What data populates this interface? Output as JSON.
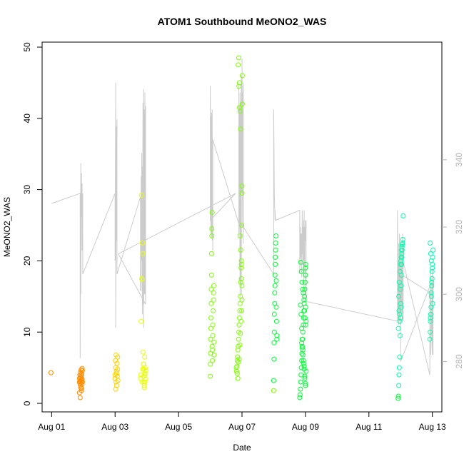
{
  "chart_data": {
    "type": "scatter",
    "title": "ATOM1 Southbound MeONO2_WAS",
    "xlabel": "Date",
    "ylabel": "MeONO2_WAS",
    "x_unit": "days since Aug 01",
    "xlim": [
      -0.3,
      12.3
    ],
    "ylim": [
      -1.2,
      50.7
    ],
    "y2lim": [
      265,
      375
    ],
    "x_ticks": [
      {
        "value": 0,
        "label": "Aug 01"
      },
      {
        "value": 2,
        "label": "Aug 03"
      },
      {
        "value": 4,
        "label": "Aug 05"
      },
      {
        "value": 6,
        "label": "Aug 07"
      },
      {
        "value": 8,
        "label": "Aug 09"
      },
      {
        "value": 10,
        "label": "Aug 11"
      },
      {
        "value": 12,
        "label": "Aug 13"
      }
    ],
    "y_ticks": [
      {
        "value": 0,
        "label": "0"
      },
      {
        "value": 10,
        "label": "10"
      },
      {
        "value": 20,
        "label": "20"
      },
      {
        "value": 30,
        "label": "30"
      },
      {
        "value": 40,
        "label": "40"
      },
      {
        "value": 50,
        "label": "50"
      }
    ],
    "y2_ticks": [
      {
        "value": 280,
        "label": "280"
      },
      {
        "value": 300,
        "label": "300"
      },
      {
        "value": 320,
        "label": "320"
      },
      {
        "value": 340,
        "label": "340"
      }
    ],
    "series": [
      {
        "name": "MeONO2_WAS",
        "kind": "points",
        "color_scale": "orange to cyan over time",
        "colors": [
          "#ff8c00",
          "#ffd200",
          "#e8ff00",
          "#7dff00",
          "#00ff33",
          "#00ffae"
        ],
        "x": [
          -0.02,
          0.88,
          0.88,
          0.89,
          0.89,
          0.9,
          0.9,
          0.91,
          0.91,
          0.92,
          0.92,
          0.93,
          0.93,
          0.94,
          0.94,
          0.95,
          0.95,
          0.96,
          0.96,
          0.97,
          0.97,
          0.88,
          0.9,
          0.92,
          0.94,
          0.96,
          2.0,
          2.0,
          2.01,
          2.02,
          2.02,
          2.03,
          2.03,
          2.04,
          2.05,
          2.05,
          2.06,
          2.07,
          2.08,
          2.08,
          2.09,
          2.8,
          2.81,
          2.82,
          2.83,
          2.84,
          2.85,
          2.86,
          2.87,
          2.88,
          2.89,
          2.9,
          2.91,
          2.92,
          2.93,
          2.94,
          2.85,
          2.87,
          2.89,
          2.9,
          2.92,
          2.94,
          2.94,
          2.95,
          2.96,
          2.97,
          5.0,
          5.0,
          5.01,
          5.01,
          5.02,
          5.02,
          5.03,
          5.03,
          5.04,
          5.04,
          5.05,
          5.05,
          5.06,
          5.06,
          5.07,
          5.07,
          5.08,
          5.08,
          5.09,
          5.1,
          5.1,
          5.11,
          5.12,
          5.12,
          5.82,
          5.83,
          5.84,
          5.85,
          5.86,
          5.87,
          5.88,
          5.89,
          5.9,
          5.91,
          5.92,
          5.93,
          5.94,
          5.95,
          5.96,
          5.97,
          5.98,
          5.99,
          6.0,
          6.0,
          6.01,
          6.01,
          5.9,
          5.92,
          5.94,
          5.96,
          5.98,
          5.85,
          5.87,
          5.89,
          5.91,
          5.93,
          5.95,
          5.97,
          5.99,
          5.88,
          5.9,
          5.92,
          5.94,
          5.96,
          5.98,
          6.0,
          6.0,
          7.0,
          7.0,
          7.01,
          7.01,
          7.02,
          7.02,
          7.03,
          7.03,
          7.04,
          7.04,
          7.05,
          7.05,
          7.06,
          7.06,
          7.07,
          7.08,
          7.08,
          7.09,
          7.1,
          7.1,
          7.82,
          7.83,
          7.84,
          7.85,
          7.86,
          7.87,
          7.88,
          7.89,
          7.9,
          7.91,
          7.92,
          7.93,
          7.94,
          7.95,
          7.96,
          7.97,
          7.98,
          7.99,
          8.0,
          8.0,
          8.01,
          8.01,
          8.02,
          8.02,
          7.84,
          7.86,
          7.88,
          7.9,
          7.92,
          7.94,
          7.96,
          7.98,
          8.0,
          7.85,
          7.87,
          7.89,
          7.91,
          7.93,
          7.95,
          7.97,
          7.99,
          8.01,
          7.88,
          7.9,
          7.92,
          7.94,
          7.96,
          7.98,
          8.0,
          10.92,
          10.93,
          10.94,
          10.95,
          10.96,
          10.97,
          10.98,
          10.99,
          11.0,
          11.01,
          11.02,
          11.03,
          11.04,
          11.05,
          11.06,
          11.07,
          11.08,
          10.94,
          10.96,
          10.98,
          11.0,
          11.02,
          11.04,
          10.95,
          10.97,
          10.99,
          11.01,
          11.03,
          11.05,
          10.93,
          10.97,
          11.01,
          11.05,
          11.92,
          11.93,
          11.94,
          11.95,
          11.96,
          11.97,
          11.98,
          11.99,
          12.0,
          12.01,
          12.02,
          11.93,
          11.95,
          11.97,
          11.99,
          12.01,
          11.94,
          11.96,
          11.98,
          12.0
        ],
        "y": [
          4.3,
          3.0,
          3.5,
          2.8,
          4.0,
          3.2,
          3.8,
          2.5,
          4.4,
          3.6,
          3.1,
          2.9,
          4.7,
          3.3,
          2.1,
          3.9,
          4.2,
          2.7,
          3.4,
          4.6,
          3.0,
          1.5,
          0.8,
          2.2,
          1.8,
          4.9,
          4.0,
          3.5,
          6.0,
          5.0,
          2.0,
          3.0,
          6.8,
          4.5,
          2.5,
          4.2,
          5.6,
          3.8,
          6.5,
          4.8,
          3.2,
          3.5,
          4.0,
          11.5,
          29.2,
          17.5,
          17.4,
          22.5,
          21.0,
          7.2,
          5.5,
          4.8,
          3.0,
          2.5,
          6.5,
          4.2,
          3.0,
          4.8,
          5.5,
          3.8,
          2.2,
          3.0,
          4.0,
          5.0,
          3.4,
          4.6,
          3.8,
          5.5,
          7.0,
          9.0,
          10.5,
          12.0,
          14.0,
          16.0,
          18.0,
          21.0,
          23.5,
          24.5,
          26.8,
          8.0,
          6.0,
          7.5,
          9.5,
          11.0,
          13.0,
          14.5,
          15.5,
          16.5,
          6.8,
          8.6,
          5.0,
          4.5,
          5.2,
          6.0,
          6.5,
          7.5,
          8.0,
          9.0,
          10.0,
          11.0,
          12.0,
          13.0,
          14.0,
          15.0,
          17.0,
          19.0,
          20.0,
          25.0,
          29.5,
          30.5,
          42.0,
          46.0,
          44.5,
          41.5,
          23.5,
          21.5,
          19.5,
          4.2,
          3.5,
          5.8,
          6.2,
          8.2,
          9.8,
          11.5,
          13.0,
          47.5,
          48.5,
          45.0,
          41.0,
          38.5,
          17.5,
          16.5,
          14.5,
          1.8,
          3.2,
          6.2,
          8.5,
          10.0,
          12.5,
          14.0,
          15.5,
          16.5,
          18.0,
          19.5,
          20.5,
          21.5,
          22.5,
          23.5,
          17.2,
          13.5,
          11.5,
          9.5,
          9.0,
          0.8,
          1.2,
          2.0,
          3.0,
          4.0,
          5.0,
          6.0,
          7.0,
          8.0,
          9.0,
          10.0,
          11.0,
          12.0,
          13.0,
          14.0,
          15.0,
          16.0,
          17.0,
          18.0,
          19.0,
          19.5,
          13.5,
          11.5,
          4.5,
          13.8,
          12.5,
          10.5,
          9.0,
          7.5,
          6.0,
          5.2,
          3.5,
          2.5,
          19.8,
          18.5,
          17.0,
          16.0,
          15.5,
          14.5,
          13.0,
          12.0,
          11.0,
          8.5,
          7.8,
          6.8,
          5.6,
          4.8,
          3.8,
          2.8,
          0.7,
          1.0,
          2.5,
          4.0,
          5.0,
          6.5,
          9.5,
          12.0,
          14.0,
          16.5,
          18.0,
          19.5,
          20.5,
          21.5,
          22.5,
          23.0,
          26.3,
          15.0,
          17.0,
          18.5,
          19.5,
          20.5,
          21.0,
          13.0,
          12.5,
          16.0,
          20.0,
          21.5,
          22.0,
          10.5,
          11.5,
          13.5,
          22.3,
          9.0,
          10.0,
          11.5,
          12.5,
          13.5,
          15.0,
          16.5,
          17.5,
          19.0,
          20.5,
          21.5,
          22.5,
          21.0,
          20.0,
          18.5,
          14.0,
          12.0,
          15.5,
          17.0,
          19.5
        ],
        "color_index": [
          0,
          0,
          0,
          0,
          0,
          0,
          0,
          0,
          0,
          0,
          0,
          0,
          0,
          0,
          0,
          0,
          0,
          0,
          0,
          0,
          0,
          0,
          0,
          0,
          0,
          0,
          1,
          1,
          1,
          1,
          1,
          1,
          1,
          1,
          1,
          1,
          1,
          1,
          1,
          1,
          1,
          2,
          2,
          2,
          2,
          2,
          2,
          2,
          2,
          2,
          2,
          2,
          2,
          2,
          2,
          2,
          2,
          2,
          2,
          2,
          2,
          2,
          2,
          2,
          2,
          2,
          3,
          3,
          3,
          3,
          3,
          3,
          3,
          3,
          3,
          3,
          3,
          3,
          3,
          3,
          3,
          3,
          3,
          3,
          3,
          3,
          3,
          3,
          3,
          3,
          3,
          3,
          3,
          3,
          3,
          3,
          3,
          3,
          3,
          3,
          3,
          3,
          3,
          3,
          3,
          3,
          3,
          3,
          3,
          3,
          3,
          3,
          3,
          3,
          3,
          3,
          3,
          3,
          3,
          3,
          3,
          3,
          3,
          3,
          3,
          3,
          3,
          3,
          3,
          3,
          3,
          3,
          3,
          3,
          4,
          4,
          4,
          4,
          4,
          4,
          4,
          4,
          4,
          4,
          4,
          4,
          4,
          4,
          4,
          4,
          4,
          4,
          4,
          4,
          4,
          4,
          4,
          4,
          4,
          4,
          4,
          4,
          4,
          4,
          4,
          4,
          4,
          4,
          4,
          4,
          4,
          4,
          4,
          4,
          4,
          4,
          4,
          4,
          4,
          4,
          4,
          4,
          4,
          4,
          4,
          4,
          4,
          4,
          4,
          4,
          4,
          4,
          4,
          4,
          4,
          4,
          4,
          4,
          4,
          4,
          4,
          4,
          4,
          4,
          5,
          5,
          5,
          5,
          5,
          5,
          5,
          5,
          5,
          5,
          5,
          5,
          5,
          5,
          5,
          5,
          5,
          5,
          5,
          5,
          5,
          5,
          5,
          5,
          5,
          5,
          5,
          5,
          5,
          5,
          5,
          5,
          5,
          5,
          5,
          5,
          5,
          5,
          5,
          5,
          5,
          5,
          5,
          5,
          5,
          5,
          5,
          5,
          5,
          5,
          5,
          5,
          5
        ]
      },
      {
        "name": "secondary trace (right axis)",
        "kind": "line",
        "color": "#cccccc",
        "x": [
          0.0,
          0.9,
          0.9,
          0.92,
          0.92,
          0.94,
          0.94,
          0.96,
          0.96,
          0.98,
          0.98,
          2.0,
          2.0,
          2.02,
          2.02,
          2.04,
          2.04,
          2.06,
          2.06,
          2.8,
          2.8,
          2.82,
          2.82,
          2.84,
          2.84,
          2.86,
          2.86,
          2.88,
          2.88,
          2.9,
          2.9,
          2.92,
          2.92,
          2.94,
          2.94,
          2.96,
          2.96,
          2.1,
          2.1,
          5.8,
          5.0,
          5.0,
          5.02,
          5.02,
          5.04,
          5.04,
          5.06,
          5.06,
          5.08,
          5.08,
          5.9,
          5.9,
          5.92,
          5.92,
          5.94,
          5.94,
          5.96,
          5.96,
          5.98,
          5.98,
          6.0,
          6.0,
          6.02,
          6.02,
          6.04,
          6.04,
          5.95,
          5.95,
          5.9,
          5.9,
          7.0,
          7.0,
          7.02,
          7.02,
          7.04,
          7.04,
          7.06,
          7.06,
          7.82,
          7.82,
          7.84,
          7.84,
          7.86,
          7.86,
          7.88,
          7.88,
          7.9,
          7.9,
          7.92,
          7.92,
          7.94,
          7.94,
          7.96,
          7.96,
          7.98,
          7.98,
          8.0,
          8.0,
          8.02,
          8.02,
          7.95,
          7.95,
          10.9,
          10.9,
          10.92,
          10.92,
          10.94,
          10.94,
          10.96,
          10.96,
          10.98,
          10.98,
          11.0,
          11.0,
          11.02,
          11.02,
          11.04,
          11.04,
          11.06,
          11.06,
          11.08,
          11.08,
          11.0,
          11.0,
          11.92,
          11.92,
          11.94,
          11.94,
          11.96,
          11.96,
          11.98,
          11.98,
          12.0,
          12.0,
          12.02,
          12.02,
          11.95,
          11.95,
          11.0,
          11.0,
          12.0
        ],
        "y": [
          327,
          330,
          281,
          339,
          300,
          336,
          323,
          333,
          313,
          330,
          306,
          330,
          310,
          363,
          290,
          350,
          316,
          352,
          306,
          329,
          301,
          335,
          301,
          342,
          310,
          338,
          294,
          357,
          297,
          361,
          290,
          355,
          300,
          360,
          300,
          356,
          297,
          312,
          312,
          330,
          322,
          362,
          318,
          353,
          317,
          354,
          316,
          355,
          313,
          346,
          321,
          362,
          329,
          356,
          299,
          360,
          303,
          357,
          300,
          365,
          330,
          370,
          320,
          360,
          315,
          363,
          318,
          340,
          318,
          322,
          306,
          355,
          330,
          330,
          322,
          325,
          322,
          322,
          325,
          306,
          320,
          309,
          318,
          311,
          318,
          305,
          325,
          312,
          320,
          310,
          322,
          310,
          325,
          306,
          320,
          310,
          322,
          316,
          322,
          298,
          322,
          298,
          292,
          325,
          294,
          310,
          291,
          315,
          292,
          318,
          291,
          310,
          293,
          312,
          296,
          313,
          294,
          315,
          292,
          318,
          292,
          315,
          296,
          313,
          276,
          300,
          301,
          308,
          287,
          296,
          294,
          305,
          282,
          307,
          282,
          303,
          282,
          303,
          280,
          306,
          300
        ]
      }
    ]
  }
}
